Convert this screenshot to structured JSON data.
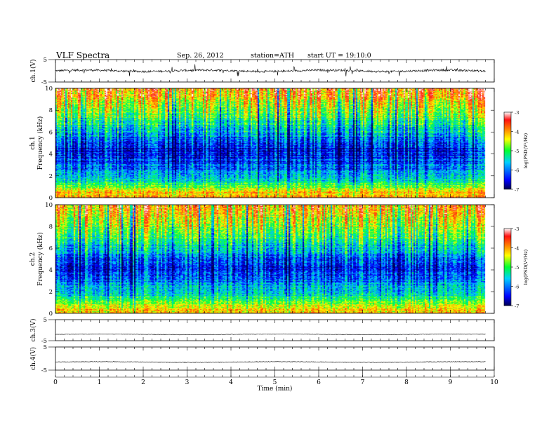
{
  "header": {
    "title": "VLF  Spectra",
    "date": "Sep. 26, 2012",
    "station": "station=ATH",
    "start": "start  UT =  19:10:0"
  },
  "chart_data": [
    {
      "type": "line",
      "panel": "ch1-waveform",
      "ylabel": "ch.1(V)",
      "ylim": [
        -5,
        5
      ],
      "yticks": [
        5,
        -5
      ],
      "x": [
        0,
        1,
        2,
        3,
        4,
        5,
        6,
        7,
        8,
        9,
        9.8
      ],
      "values": [
        0,
        0,
        0,
        0,
        0,
        0,
        0,
        0,
        0,
        0,
        0
      ]
    },
    {
      "type": "heatmap",
      "panel": "ch1-spectrogram",
      "ylabel_top": "ch.1",
      "ylabel": "Frequency (kHz)",
      "ylim": [
        0,
        10
      ],
      "yticks": [
        0,
        2,
        4,
        6,
        8,
        10
      ],
      "colorbar_label": "log(PSD(V²/Hz)",
      "colorbar_range": [
        -7,
        -3
      ],
      "colorbar_ticks": [
        "-3",
        "-4",
        "-5",
        "-6",
        "-7"
      ],
      "colors": [
        "#000060",
        "#0000ff",
        "#00c8ff",
        "#00ff40",
        "#ffff00",
        "#ff9000",
        "#ff2000",
        "#ffffff"
      ],
      "level_profile": [
        {
          "freq_khz": 0.5,
          "log_psd": -4.2
        },
        {
          "freq_khz": 1.5,
          "log_psd": -5.5
        },
        {
          "freq_khz": 3.0,
          "log_psd": -6.3
        },
        {
          "freq_khz": 4.5,
          "log_psd": -6.6
        },
        {
          "freq_khz": 6.0,
          "log_psd": -5.8
        },
        {
          "freq_khz": 7.5,
          "log_psd": -5.0
        },
        {
          "freq_khz": 9.0,
          "log_psd": -4.4
        },
        {
          "freq_khz": 9.8,
          "log_psd": -3.9
        }
      ]
    },
    {
      "type": "heatmap",
      "panel": "ch2-spectrogram",
      "ylabel_top": "ch.2",
      "ylabel": "Frequency (kHz)",
      "ylim": [
        0,
        10
      ],
      "yticks": [
        0,
        2,
        4,
        6,
        8,
        10
      ],
      "colorbar_label": "log(PSD(V²/Hz)",
      "colorbar_range": [
        -7,
        -3
      ],
      "colorbar_ticks": [
        "-3",
        "-4",
        "-5",
        "-6",
        "-7"
      ],
      "colors": [
        "#000060",
        "#0000ff",
        "#00c8ff",
        "#00ff40",
        "#ffff00",
        "#ff9000",
        "#ff2000",
        "#ffffff"
      ],
      "level_profile": [
        {
          "freq_khz": 0.5,
          "log_psd": -4.3
        },
        {
          "freq_khz": 1.5,
          "log_psd": -5.4
        },
        {
          "freq_khz": 3.0,
          "log_psd": -6.1
        },
        {
          "freq_khz": 4.5,
          "log_psd": -6.5
        },
        {
          "freq_khz": 6.0,
          "log_psd": -5.7
        },
        {
          "freq_khz": 7.5,
          "log_psd": -4.9
        },
        {
          "freq_khz": 9.0,
          "log_psd": -4.4
        },
        {
          "freq_khz": 9.8,
          "log_psd": -4.0
        }
      ]
    },
    {
      "type": "line",
      "panel": "ch3-waveform",
      "ylabel": "ch.3(V)",
      "ylim": [
        -5,
        5
      ],
      "yticks": [
        5,
        -5
      ],
      "x": [
        0,
        9.8
      ],
      "values": [
        -2,
        -2
      ]
    },
    {
      "type": "line",
      "panel": "ch4-waveform",
      "ylabel": "ch.4(V)",
      "ylim": [
        -5,
        5
      ],
      "yticks": [
        5,
        -5
      ],
      "x": [
        0,
        9.8
      ],
      "values": [
        -1.5,
        -1.5
      ]
    }
  ],
  "xaxis": {
    "label": "Time  (min)",
    "xlim": [
      0,
      10
    ],
    "ticks": [
      0,
      1,
      2,
      3,
      4,
      5,
      6,
      7,
      8,
      9,
      10
    ]
  }
}
